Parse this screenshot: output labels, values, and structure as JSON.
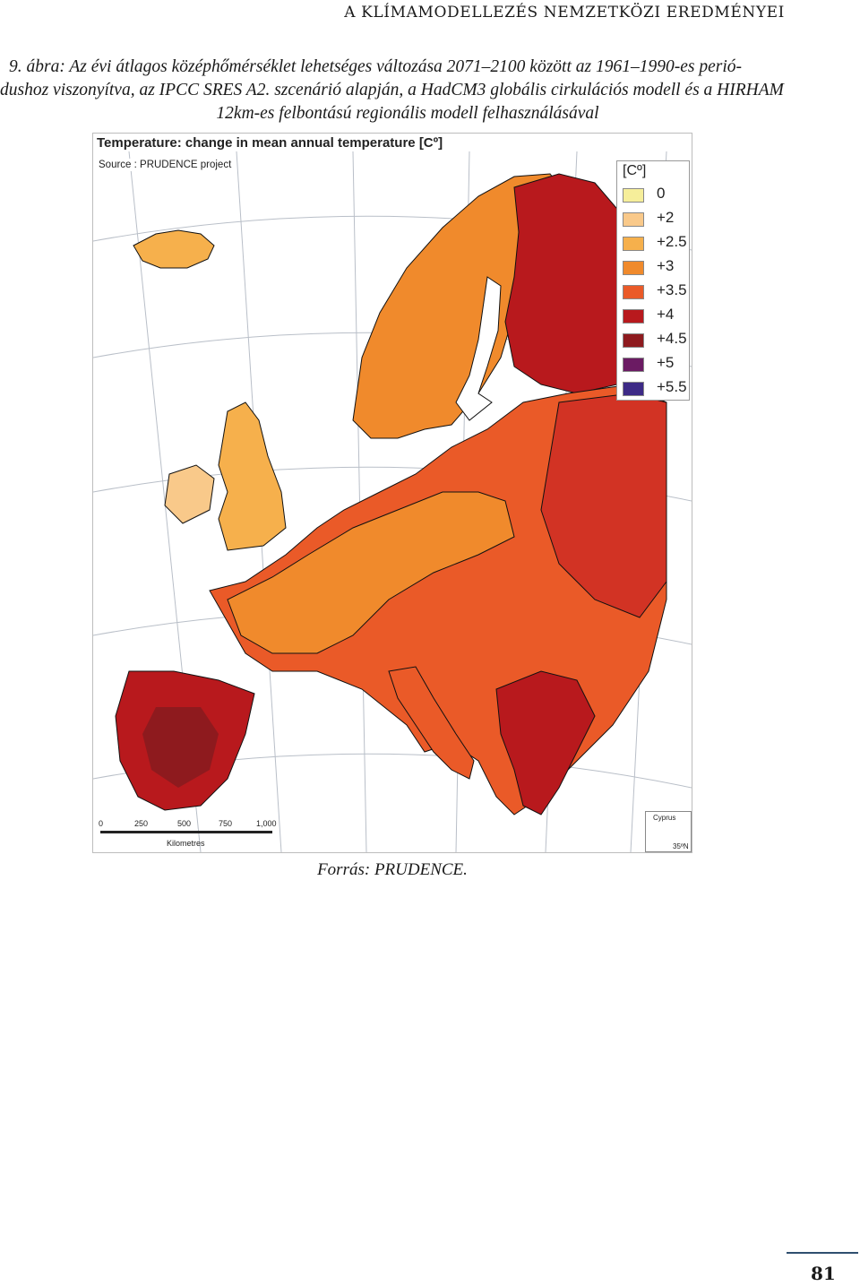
{
  "running_head": "A KLÍMAMODELLEZÉS NEMZETKÖZI EREDMÉNYEI",
  "caption": {
    "line1": "9. ábra: Az évi átlagos középhőmérséklet lehetséges változása 2071–2100 között az 1961–1990-es perió-",
    "line2": "dushoz viszonyítva, az IPCC SRES A2. szcenárió alapján, a HadCM3 globális cirkulációs modell és a HIRHAM",
    "line3": "12km-es felbontású regionális modell felhasználásával"
  },
  "map": {
    "title": "Temperature: change in mean annual temperature [Cº]",
    "source": "Source : PRUDENCE project",
    "legend": {
      "unit": "[Cº]",
      "items": [
        {
          "label": "0",
          "color": "#f6ee9a"
        },
        {
          "label": "+2",
          "color": "#f9c98a"
        },
        {
          "label": "+2.5",
          "color": "#f6b04c"
        },
        {
          "label": "+3",
          "color": "#f08a2c"
        },
        {
          "label": "+3.5",
          "color": "#ea5a28"
        },
        {
          "label": "+4",
          "color": "#b8191d"
        },
        {
          "label": "+4.5",
          "color": "#8e1a1e"
        },
        {
          "label": "+5",
          "color": "#6b1b63"
        },
        {
          "label": "+5.5",
          "color": "#3d2a86"
        }
      ]
    },
    "scale": {
      "ticks": [
        "0",
        "250",
        "500",
        "750",
        "1,000"
      ],
      "unit": "Kilometres"
    },
    "inset": {
      "label": "Cyprus",
      "latitude": "35ºN"
    },
    "colors": {
      "sea": "#ffffff",
      "graticule": "#b9bfc8",
      "border": "#111111"
    }
  },
  "source_line": "Forrás: PRUDENCE.",
  "page_number": "81"
}
